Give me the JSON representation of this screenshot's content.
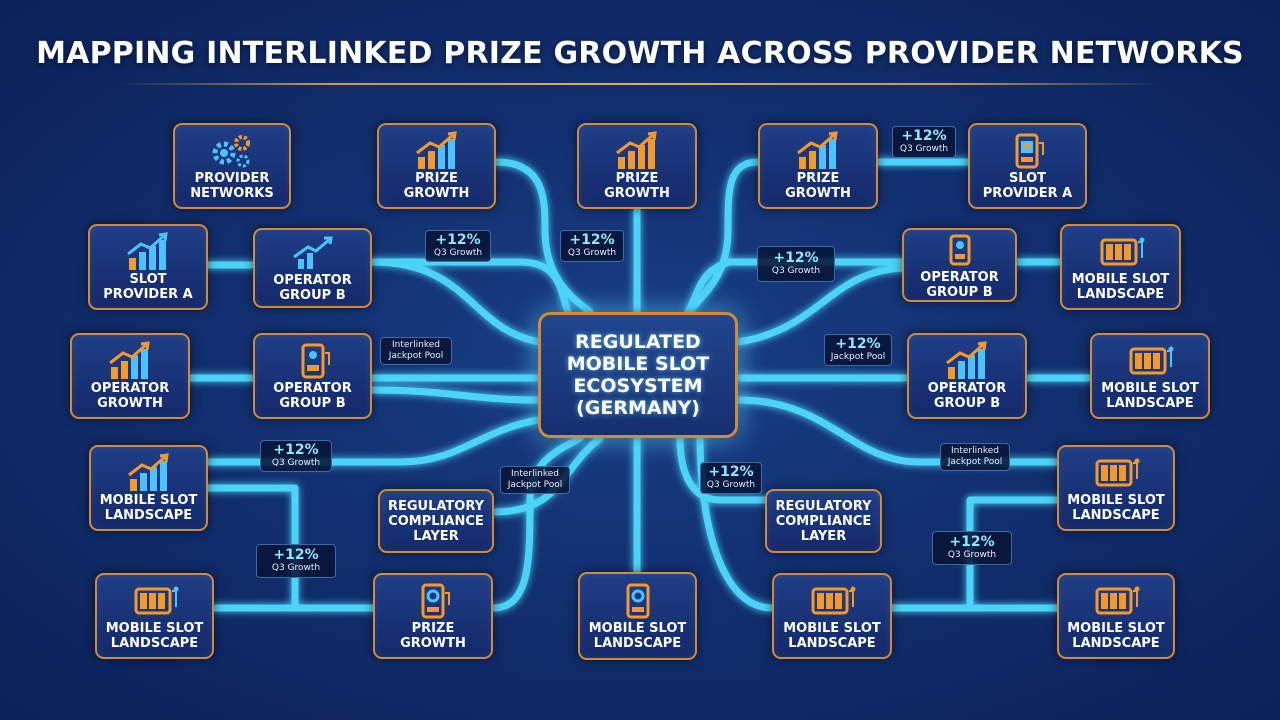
{
  "title": "MAPPING INTERLINKED PRIZE GROWTH ACROSS PROVIDER NETWORKS",
  "colors": {
    "link": "#4fdcff",
    "node_border": "#d08a3a",
    "icon_orange": "#f39a2c",
    "icon_blue": "#4cc3ff"
  },
  "center": {
    "label": "REGULATED\nMOBILE SLOT\nECOSYSTEM\n(GERMANY)"
  },
  "nodes": [
    {
      "id": "n1",
      "label": "PROVIDER\nNETWORKS",
      "icon": "gears-icon"
    },
    {
      "id": "n2",
      "label": "PRIZE\nGROWTH",
      "icon": "growth-chart-icon"
    },
    {
      "id": "n3",
      "label": "PRIZE GROWTH",
      "icon": "growth-chart-icon"
    },
    {
      "id": "n4",
      "label": "PRIZE GROWTH",
      "icon": "growth-chart-icon"
    },
    {
      "id": "n5",
      "label": "SLOT\nPROVIDER A",
      "icon": "slot-machine-icon"
    },
    {
      "id": "n6",
      "label": "SLOT\nPROVIDER A",
      "icon": "growth-chart-icon"
    },
    {
      "id": "n7",
      "label": "OPERATOR\nGROUP B",
      "icon": "growth-chart-icon"
    },
    {
      "id": "n8",
      "label": "OPERATOR\nGROUP B",
      "icon": "slot-machine-icon"
    },
    {
      "id": "n9",
      "label": "MOBILE SLOT\nLANDSCAPE",
      "icon": "slot-reels-icon"
    },
    {
      "id": "n10",
      "label": "OPERATOR\nGROWTH",
      "icon": "growth-chart-icon"
    },
    {
      "id": "n11",
      "label": "OPERATOR\nGROUP B",
      "icon": "slot-machine-icon"
    },
    {
      "id": "n12",
      "label": "OPERATOR\nGROUP B",
      "icon": "growth-chart-icon"
    },
    {
      "id": "n13",
      "label": "MOBILE SLOT\nLANDSCAPE",
      "icon": "slot-reels-icon"
    },
    {
      "id": "n14",
      "label": "MOBILE SLOT\nLANDSCAPE",
      "icon": "growth-chart-icon"
    },
    {
      "id": "n15",
      "label": "REGULATORY\nCOMPLIANCE\nLAYER",
      "icon": ""
    },
    {
      "id": "n16",
      "label": "REGULATORY\nCOMPLIANCE\nLAYER",
      "icon": ""
    },
    {
      "id": "n17",
      "label": "MOBILE SLOT\nLANDSCAPE",
      "icon": "slot-reels-icon"
    },
    {
      "id": "n18",
      "label": "MOBILE SLOT\nLANDSCAPE",
      "icon": "slot-reels-icon"
    },
    {
      "id": "n19",
      "label": "PRIZE\nGROWTH",
      "icon": "slot-machine-icon"
    },
    {
      "id": "n20",
      "label": "MOBILE SLOT\nLANDSCAPE",
      "icon": "slot-machine-icon"
    },
    {
      "id": "n21",
      "label": "MOBILE SLOT\nLANDSCAPE",
      "icon": "slot-reels-icon"
    },
    {
      "id": "n22",
      "label": "MOBILE SLOT\nLANDSCAPE",
      "icon": "slot-reels-icon"
    }
  ],
  "badges": [
    {
      "id": "b1",
      "value": "+12%",
      "sub": "Q3 Growth"
    },
    {
      "id": "b2",
      "value": "+12%",
      "sub": "Q3 Growth"
    },
    {
      "id": "b3",
      "value": "+12%",
      "sub": "Q3 Growth"
    },
    {
      "id": "b4",
      "value": "+12%",
      "sub": "Q3 Growth"
    },
    {
      "id": "b5",
      "value": "+12%",
      "sub": "Jackpot Pool"
    },
    {
      "id": "b6",
      "value": "+12%",
      "sub": "Q3 Growth"
    },
    {
      "id": "b7",
      "value": "+12%",
      "sub": "Q3 Growth"
    },
    {
      "id": "b8",
      "value": "+12%",
      "sub": "Q3 Growth"
    },
    {
      "id": "b9",
      "value": "+12%",
      "sub": "Q3 Growth"
    }
  ],
  "notes": [
    {
      "id": "t1",
      "text": "Interlinked\nJackpot Pool"
    },
    {
      "id": "t2",
      "text": "Interlinked\nJackpot Pool"
    },
    {
      "id": "t3",
      "text": "Interlinked\nJackpot Pool"
    }
  ]
}
